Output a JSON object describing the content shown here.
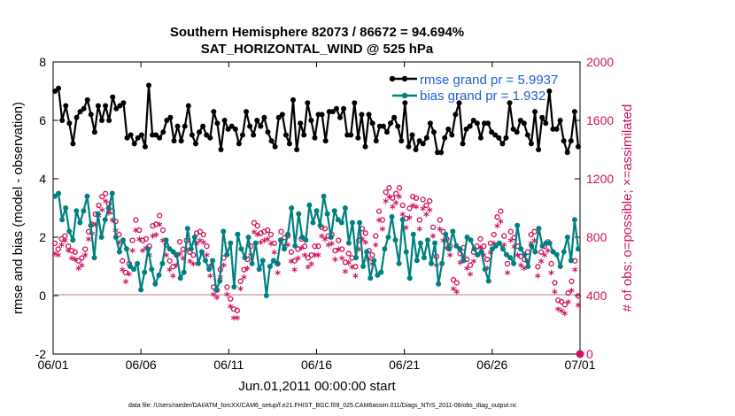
{
  "chart_data": {
    "type": "line",
    "title": "Southern Hemisphere 82073 / 86672 = 94.694%",
    "subtitle": "SAT_HORIZONTAL_WIND @ 525 hPa",
    "xlabel": "Jun.01,2011 00:00:00 start",
    "ylabel": "rmse and bias (model - observation)",
    "ylabel_right": "# of obs: o=possible; ×=assimilated",
    "footnote": "data file: /Users/raeder/DAI/ATM_forcXX/CAM6_setup/f.e21.FHIST_BGC.f09_025.CAM6assim.011/Diags_NTrS_2011-06/obs_diag_output.nc",
    "x_ticks": [
      "06/01",
      "06/06",
      "06/11",
      "06/16",
      "06/21",
      "06/26",
      "07/01"
    ],
    "y_ticks": [
      "-2",
      "0",
      "2",
      "4",
      "6",
      "8"
    ],
    "y_right_ticks": [
      "0",
      "400",
      "800",
      "1200",
      "1600",
      "2000"
    ],
    "ylim": [
      -2,
      8
    ],
    "ylim_right": [
      0,
      2000
    ],
    "xlim_days": [
      0,
      30
    ],
    "grid": false,
    "legend_position": "top-right",
    "colors": {
      "rmse": "#000000",
      "bias": "#008080",
      "obs": "#d0105e",
      "zero_line": "#c8a8ae",
      "legend_text": "#1f5fd6"
    },
    "series": [
      {
        "name": "rmse grand pr = 5.9937",
        "values": [
          7.0,
          7.1,
          6.0,
          6.5,
          5.9,
          5.2,
          6.1,
          6.3,
          6.4,
          6.7,
          6.2,
          5.6,
          6.5,
          6.0,
          6.5,
          6.0,
          6.8,
          6.4,
          6.5,
          6.6,
          5.4,
          5.5,
          5.2,
          5.4,
          5.5,
          5.1,
          7.2,
          5.5,
          5.5,
          5.4,
          5.6,
          6.0,
          6.1,
          5.3,
          5.8,
          5.3,
          5.8,
          6.5,
          5.5,
          5.2,
          5.6,
          5.8,
          5.5,
          5.4,
          6.3,
          5.9,
          5.0,
          6.0,
          5.7,
          5.8,
          5.7,
          5.2,
          5.5,
          6.3,
          5.8,
          5.5,
          6.0,
          5.8,
          6.1,
          5.6,
          5.3,
          5.1,
          6.1,
          6.2,
          5.5,
          5.2,
          6.7,
          5.0,
          5.9,
          5.5,
          6.6,
          6.0,
          5.4,
          6.2,
          6.2,
          5.3,
          6.3,
          6.3,
          6.4,
          6.1,
          6.4,
          5.5,
          5.5,
          6.6,
          5.4,
          6.2,
          5.1,
          6.2,
          5.9,
          5.3,
          5.8,
          5.8,
          5.6,
          5.9,
          6.1,
          5.8,
          5.3,
          6.6,
          5.1,
          5.5,
          5.0,
          5.3,
          5.2,
          5.4,
          5.9,
          5.6,
          4.9,
          4.9,
          5.4,
          5.7,
          5.5,
          6.2,
          6.6,
          5.2,
          5.7,
          5.8,
          6.0,
          5.9,
          5.4,
          5.9,
          5.9,
          5.6,
          5.5,
          5.4,
          5.2,
          5.4,
          6.6,
          5.7,
          5.6,
          6.0,
          5.9,
          5.5,
          5.2,
          6.3,
          5.0,
          6.1,
          5.9,
          7.0,
          5.7,
          5.7,
          6.0,
          5.3,
          4.9,
          5.3,
          6.3,
          5.1
        ]
      },
      {
        "name": "bias grand pr = 1.932",
        "values": [
          3.4,
          3.5,
          2.6,
          3.0,
          2.2,
          1.9,
          2.9,
          2.5,
          2.9,
          3.4,
          2.4,
          1.3,
          2.8,
          2.0,
          2.6,
          3.0,
          3.5,
          2.0,
          1.5,
          1.9,
          1.6,
          1.0,
          0.9,
          1.1,
          0.2,
          0.8,
          1.6,
          0.9,
          0.4,
          0.7,
          1.1,
          1.9,
          1.6,
          1.5,
          1.4,
          0.6,
          0.8,
          2.3,
          1.6,
          2.0,
          1.1,
          1.5,
          1.2,
          0.9,
          1.2,
          0.2,
          0.5,
          2.2,
          1.4,
          1.8,
          0.3,
          2.1,
          1.6,
          1.3,
          2.0,
          1.1,
          1.8,
          0.9,
          1.2,
          0.0,
          1.0,
          1.2,
          1.1,
          1.9,
          1.6,
          2.1,
          3.0,
          1.7,
          2.8,
          2.0,
          1.9,
          3.1,
          2.5,
          2.9,
          2.4,
          3.4,
          2.8,
          2.0,
          2.9,
          2.6,
          2.5,
          3.0,
          1.8,
          2.5,
          1.3,
          2.5,
          1.0,
          1.5,
          0.6,
          1.2,
          0.7,
          0.8,
          1.6,
          2.0,
          2.7,
          1.9,
          1.1,
          2.6,
          1.5,
          0.6,
          2.1,
          1.2,
          1.8,
          1.3,
          1.9,
          1.1,
          1.8,
          0.4,
          1.1,
          2.1,
          1.6,
          2.2,
          1.7,
          1.6,
          1.2,
          2.0,
          1.9,
          1.6,
          1.4,
          1.5,
          0.9,
          0.5,
          1.6,
          1.7,
          1.8,
          1.6,
          1.4,
          1.3,
          1.1,
          2.4,
          1.6,
          1.4,
          1.0,
          1.7,
          1.5,
          2.3,
          1.7,
          1.8,
          1.8,
          1.5,
          1.4,
          1.0,
          1.5,
          2.0,
          1.2,
          2.6,
          1.6
        ]
      },
      {
        "name": "# obs possible",
        "axis": "right",
        "values": [
          740,
          700,
          770,
          790,
          720,
          690,
          680,
          620,
          640,
          700,
          820,
          870,
          940,
          1000,
          1060,
          1080,
          1010,
          960,
          890,
          800,
          620,
          540,
          600,
          760,
          900,
          830,
          760,
          770,
          720,
          860,
          870,
          930,
          830,
          730,
          620,
          580,
          660,
          750,
          700,
          760,
          680,
          660,
          810,
          820,
          800,
          720,
          580,
          440,
          420,
          560,
          640,
          440,
          360,
          290,
          280,
          480,
          560,
          630,
          720,
          880,
          860,
          810,
          820,
          830,
          800,
          740,
          600,
          820,
          780,
          790,
          680,
          620,
          700,
          770,
          720,
          640,
          660,
          720,
          720,
          850,
          840,
          790,
          800,
          690,
          760,
          700,
          610,
          670,
          640,
          580,
          760,
          840,
          810,
          690,
          660,
          790,
          960,
          900,
          1090,
          1120,
          1050,
          1080,
          1120,
          1000,
          910,
          980,
          1060,
          1050,
          900,
          1040,
          1000,
          1030,
          850,
          650,
          900,
          820,
          770,
          720,
          490,
          470,
          670,
          710,
          630,
          590,
          680,
          720,
          770,
          720,
          630,
          740,
          800,
          920,
          960,
          790,
          600,
          820,
          780,
          720,
          650,
          630,
          680,
          800,
          820,
          580,
          680,
          720,
          750,
          600,
          470,
          350,
          340,
          320,
          400,
          480,
          620,
          380
        ]
      },
      {
        "name": "# obs assimilated",
        "axis": "right",
        "values": [
          700,
          690,
          760,
          790,
          720,
          670,
          660,
          600,
          620,
          690,
          800,
          840,
          900,
          960,
          1000,
          1060,
          980,
          930,
          860,
          780,
          590,
          510,
          560,
          720,
          860,
          800,
          720,
          740,
          690,
          820,
          830,
          900,
          790,
          690,
          590,
          550,
          620,
          700,
          670,
          730,
          650,
          630,
          770,
          790,
          780,
          690,
          550,
          420,
          400,
          540,
          620,
          420,
          340,
          260,
          260,
          460,
          540,
          600,
          690,
          850,
          830,
          780,
          790,
          800,
          770,
          710,
          570,
          790,
          750,
          760,
          650,
          590,
          670,
          740,
          690,
          610,
          630,
          690,
          690,
          820,
          800,
          760,
          770,
          660,
          730,
          670,
          580,
          640,
          610,
          550,
          730,
          800,
          780,
          660,
          630,
          760,
          930,
          870,
          1060,
          1090,
          1020,
          1050,
          1090,
          970,
          880,
          950,
          1030,
          1020,
          870,
          1010,
          970,
          1000,
          820,
          620,
          870,
          790,
          740,
          690,
          460,
          440,
          640,
          680,
          600,
          560,
          650,
          690,
          740,
          690,
          600,
          710,
          770,
          890,
          920,
          760,
          570,
          790,
          750,
          690,
          620,
          600,
          650,
          770,
          790,
          550,
          650,
          690,
          720,
          570,
          440,
          320,
          310,
          290,
          370,
          450,
          590,
          350
        ]
      }
    ]
  }
}
